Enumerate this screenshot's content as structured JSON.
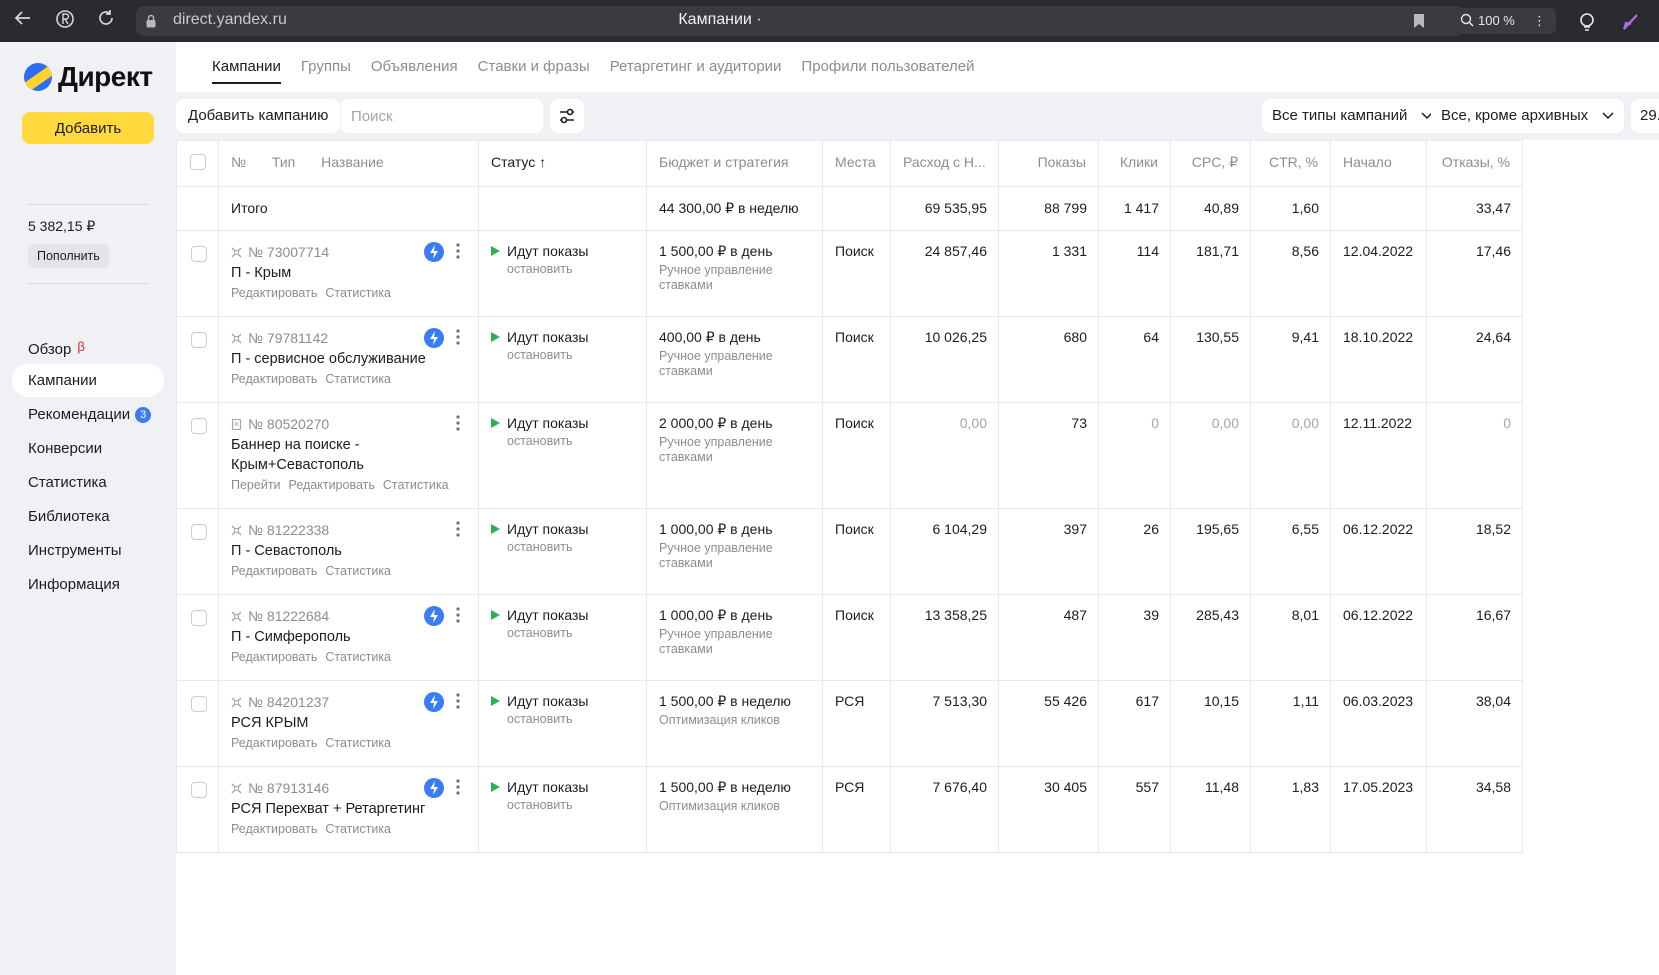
{
  "browser": {
    "url": "direct.yandex.ru",
    "title": "Кампании ·",
    "zoom": "100 %"
  },
  "sidebar": {
    "logo": "Директ",
    "add_button": "Добавить",
    "balance": "5 382,15 ₽",
    "topup_button": "Пополнить",
    "nav": [
      {
        "label": "Обзор",
        "badge": "β"
      },
      {
        "label": "Кампании"
      },
      {
        "label": "Рекомендации",
        "count": "3"
      },
      {
        "label": "Конверсии"
      },
      {
        "label": "Статистика"
      },
      {
        "label": "Библиотека"
      },
      {
        "label": "Инструменты"
      },
      {
        "label": "Информация"
      }
    ]
  },
  "tabs": [
    "Кампании",
    "Группы",
    "Объявления",
    "Ставки и фразы",
    "Ретаргетинг и аудитории",
    "Профили пользователей"
  ],
  "toolbar": {
    "add_campaign": "Добавить кампанию",
    "search_placeholder": "Поиск",
    "type_filter": "Все типы кампаний",
    "archive_filter": "Все, кроме архивных",
    "date_filter": "29."
  },
  "table": {
    "headers": {
      "num": "№",
      "type": "Тип",
      "name": "Название",
      "status": "Статус ↑",
      "budget": "Бюджет и стратегия",
      "places": "Места",
      "spend": "Расход с Н...",
      "impressions": "Показы",
      "clicks": "Клики",
      "cpc": "CPC, ₽",
      "ctr": "CTR, %",
      "start": "Начало",
      "bounce": "Отказы, %"
    },
    "total": {
      "label": "Итого",
      "budget": "44 300,00 ₽ в неделю",
      "spend": "69 535,95",
      "impressions": "88 799",
      "clicks": "1 417",
      "cpc": "40,89",
      "ctr": "1,60",
      "bounce": "33,47"
    },
    "rows": [
      {
        "id": "№ 73007714",
        "name": "П - Крым",
        "links": [
          "Редактировать",
          "Статистика"
        ],
        "status": "Идут показы",
        "stop": "остановить",
        "budget": "1 500,00 ₽ в день",
        "strategy": "Ручное управление ставками",
        "places": "Поиск",
        "spend": "24 857,46",
        "impressions": "1 331",
        "clicks": "114",
        "cpc": "181,71",
        "ctr": "8,56",
        "start": "12.04.2022",
        "bounce": "17,46"
      },
      {
        "id": "№ 79781142",
        "name": "П - сервисное обслуживание",
        "links": [
          "Редактировать",
          "Статистика"
        ],
        "status": "Идут показы",
        "stop": "остановить",
        "budget": "400,00 ₽ в день",
        "strategy": "Ручное управление ставками",
        "places": "Поиск",
        "spend": "10 026,25",
        "impressions": "680",
        "clicks": "64",
        "cpc": "130,55",
        "ctr": "9,41",
        "start": "18.10.2022",
        "bounce": "24,64"
      },
      {
        "id": "№ 80520270",
        "name": "Баннер на поиске - Крым+Севастополь",
        "links": [
          "Перейти",
          "Редактировать",
          "Статистика"
        ],
        "status": "Идут показы",
        "stop": "остановить",
        "budget": "2 000,00 ₽ в день",
        "strategy": "Ручное управление ставками",
        "places": "Поиск",
        "spend": "0,00",
        "impressions": "73",
        "clicks": "0",
        "cpc": "0,00",
        "ctr": "0,00",
        "start": "12.11.2022",
        "bounce": "0"
      },
      {
        "id": "№ 81222338",
        "name": "П - Севастополь",
        "links": [
          "Редактировать",
          "Статистика"
        ],
        "status": "Идут показы",
        "stop": "остановить",
        "budget": "1 000,00 ₽ в день",
        "strategy": "Ручное управление ставками",
        "places": "Поиск",
        "spend": "6 104,29",
        "impressions": "397",
        "clicks": "26",
        "cpc": "195,65",
        "ctr": "6,55",
        "start": "06.12.2022",
        "bounce": "18,52"
      },
      {
        "id": "№ 81222684",
        "name": "П - Симферополь",
        "links": [
          "Редактировать",
          "Статистика"
        ],
        "status": "Идут показы",
        "stop": "остановить",
        "budget": "1 000,00 ₽ в день",
        "strategy": "Ручное управление ставками",
        "places": "Поиск",
        "spend": "13 358,25",
        "impressions": "487",
        "clicks": "39",
        "cpc": "285,43",
        "ctr": "8,01",
        "start": "06.12.2022",
        "bounce": "16,67"
      },
      {
        "id": "№ 84201237",
        "name": "РСЯ КРЫМ",
        "links": [
          "Редактировать",
          "Статистика"
        ],
        "status": "Идут показы",
        "stop": "остановить",
        "budget": "1 500,00 ₽ в неделю",
        "strategy": "Оптимизация кликов",
        "places": "РСЯ",
        "spend": "7 513,30",
        "impressions": "55 426",
        "clicks": "617",
        "cpc": "10,15",
        "ctr": "1,11",
        "start": "06.03.2023",
        "bounce": "38,04"
      },
      {
        "id": "№ 87913146",
        "name": "РСЯ Перехват + Ретаргетинг",
        "links": [
          "Редактировать",
          "Статистика"
        ],
        "status": "Идут показы",
        "stop": "остановить",
        "budget": "1 500,00 ₽ в неделю",
        "strategy": "Оптимизация кликов",
        "places": "РСЯ",
        "spend": "7 676,40",
        "impressions": "30 405",
        "clicks": "557",
        "cpc": "11,48",
        "ctr": "1,83",
        "start": "17.05.2023",
        "bounce": "34,58"
      }
    ]
  },
  "colors": {
    "accent_yellow": "#ffd93d",
    "accent_blue": "#3b7cf5",
    "status_green": "#2bb24c",
    "beta_red": "#e3212f"
  }
}
